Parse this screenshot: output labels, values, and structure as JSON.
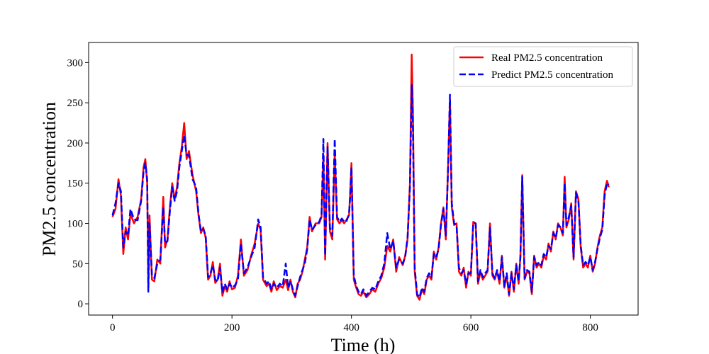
{
  "chart_data": {
    "type": "line",
    "title": "",
    "xlabel": "Time (h)",
    "ylabel": "PM2.5 concentration",
    "xlim": [
      -40,
      880
    ],
    "ylim": [
      -14,
      325
    ],
    "xticks": [
      0,
      200,
      400,
      600,
      800
    ],
    "yticks": [
      0,
      50,
      100,
      150,
      200,
      250,
      300
    ],
    "grid": false,
    "legend_position": "top-right",
    "series": [
      {
        "name": "Real PM2.5 concentration",
        "color": "#ff0000",
        "style": "solid",
        "x": [
          0,
          5,
          10,
          14,
          18,
          22,
          26,
          30,
          36,
          42,
          48,
          52,
          55,
          58,
          60,
          62,
          66,
          70,
          75,
          80,
          85,
          88,
          92,
          96,
          100,
          104,
          108,
          112,
          116,
          120,
          124,
          128,
          134,
          140,
          144,
          148,
          152,
          156,
          160,
          164,
          168,
          172,
          176,
          180,
          184,
          188,
          192,
          196,
          200,
          205,
          210,
          215,
          220,
          226,
          232,
          238,
          244,
          248,
          252,
          258,
          262,
          266,
          270,
          275,
          280,
          285,
          290,
          294,
          298,
          302,
          306,
          310,
          314,
          318,
          322,
          326,
          330,
          334,
          340,
          346,
          350,
          353,
          356,
          360,
          364,
          368,
          372,
          376,
          380,
          384,
          388,
          392,
          396,
          398,
          400,
          404,
          408,
          412,
          416,
          420,
          425,
          430,
          435,
          440,
          445,
          450,
          455,
          460,
          465,
          470,
          475,
          480,
          486,
          490,
          494,
          498,
          501,
          503,
          506,
          510,
          514,
          518,
          522,
          526,
          530,
          534,
          538,
          542,
          546,
          550,
          554,
          558,
          562,
          565,
          568,
          572,
          576,
          580,
          584,
          588,
          592,
          596,
          600,
          604,
          608,
          612,
          616,
          620,
          624,
          628,
          632,
          636,
          640,
          644,
          648,
          652,
          656,
          660,
          664,
          668,
          672,
          676,
          680,
          683,
          686,
          690,
          694,
          698,
          702,
          706,
          710,
          714,
          718,
          722,
          726,
          730,
          734,
          738,
          742,
          746,
          750,
          754,
          757,
          760,
          764,
          768,
          772,
          776,
          780,
          784,
          788,
          792,
          796,
          800,
          804,
          808,
          812,
          816,
          820,
          824,
          828,
          831
        ],
        "values": [
          108,
          118,
          155,
          135,
          62,
          95,
          80,
          112,
          100,
          108,
          130,
          170,
          180,
          150,
          20,
          110,
          30,
          28,
          55,
          50,
          133,
          70,
          80,
          120,
          150,
          130,
          145,
          175,
          195,
          225,
          180,
          190,
          160,
          140,
          110,
          88,
          95,
          82,
          30,
          35,
          52,
          26,
          30,
          50,
          10,
          22,
          15,
          28,
          18,
          20,
          35,
          80,
          35,
          42,
          60,
          75,
          100,
          92,
          30,
          22,
          25,
          15,
          28,
          17,
          22,
          20,
          30,
          17,
          30,
          15,
          8,
          25,
          30,
          40,
          55,
          70,
          108,
          90,
          100,
          100,
          108,
          185,
          55,
          200,
          90,
          80,
          188,
          105,
          100,
          104,
          100,
          105,
          110,
          140,
          175,
          30,
          20,
          12,
          10,
          15,
          8,
          12,
          18,
          15,
          25,
          32,
          45,
          72,
          65,
          80,
          40,
          58,
          48,
          60,
          80,
          150,
          310,
          240,
          40,
          10,
          5,
          18,
          12,
          30,
          35,
          30,
          65,
          55,
          70,
          100,
          120,
          80,
          175,
          255,
          120,
          98,
          100,
          40,
          35,
          45,
          20,
          40,
          35,
          102,
          100,
          25,
          40,
          30,
          35,
          40,
          100,
          35,
          30,
          40,
          25,
          60,
          20,
          35,
          10,
          40,
          15,
          50,
          25,
          60,
          160,
          30,
          40,
          38,
          12,
          60,
          45,
          50,
          45,
          60,
          55,
          75,
          65,
          90,
          80,
          100,
          95,
          85,
          158,
          95,
          105,
          125,
          55,
          140,
          130,
          70,
          45,
          50,
          45,
          60,
          40,
          50,
          70,
          85,
          95,
          140,
          153,
          145
        ]
      },
      {
        "name": "Predict PM2.5 concentration",
        "color": "#0000ff",
        "style": "dashed",
        "x": [
          0,
          5,
          10,
          14,
          18,
          22,
          26,
          30,
          36,
          42,
          48,
          52,
          55,
          58,
          60,
          62,
          66,
          70,
          75,
          80,
          85,
          88,
          92,
          96,
          100,
          104,
          108,
          112,
          116,
          120,
          124,
          128,
          134,
          140,
          144,
          148,
          152,
          156,
          160,
          164,
          168,
          172,
          176,
          180,
          184,
          188,
          192,
          196,
          200,
          205,
          210,
          215,
          220,
          226,
          232,
          238,
          244,
          248,
          252,
          258,
          262,
          266,
          270,
          275,
          280,
          285,
          290,
          294,
          298,
          302,
          306,
          310,
          314,
          318,
          322,
          326,
          330,
          334,
          340,
          346,
          350,
          353,
          356,
          360,
          364,
          368,
          372,
          376,
          380,
          384,
          388,
          392,
          396,
          398,
          400,
          404,
          408,
          412,
          416,
          420,
          425,
          430,
          435,
          440,
          445,
          450,
          455,
          460,
          465,
          470,
          475,
          480,
          486,
          490,
          494,
          498,
          501,
          503,
          506,
          510,
          514,
          518,
          522,
          526,
          530,
          534,
          538,
          542,
          546,
          550,
          554,
          558,
          562,
          565,
          568,
          572,
          576,
          580,
          584,
          588,
          592,
          596,
          600,
          604,
          608,
          612,
          616,
          620,
          624,
          628,
          632,
          636,
          640,
          644,
          648,
          652,
          656,
          660,
          664,
          668,
          672,
          676,
          680,
          683,
          686,
          690,
          694,
          698,
          702,
          706,
          710,
          714,
          718,
          722,
          726,
          730,
          734,
          738,
          742,
          746,
          750,
          754,
          757,
          760,
          764,
          768,
          772,
          776,
          780,
          784,
          788,
          792,
          796,
          800,
          804,
          808,
          812,
          816,
          820,
          824,
          828,
          831
        ],
        "values": [
          110,
          125,
          150,
          140,
          70,
          90,
          85,
          118,
          105,
          104,
          128,
          165,
          175,
          155,
          15,
          100,
          35,
          32,
          50,
          55,
          120,
          75,
          78,
          115,
          145,
          128,
          140,
          170,
          190,
          210,
          185,
          185,
          155,
          145,
          112,
          90,
          93,
          85,
          33,
          38,
          48,
          30,
          28,
          45,
          14,
          25,
          18,
          25,
          20,
          23,
          30,
          75,
          38,
          45,
          58,
          70,
          105,
          95,
          33,
          25,
          28,
          18,
          25,
          20,
          25,
          22,
          50,
          20,
          28,
          18,
          10,
          22,
          33,
          42,
          50,
          68,
          105,
          92,
          98,
          102,
          110,
          205,
          60,
          195,
          95,
          85,
          205,
          108,
          102,
          106,
          102,
          103,
          112,
          135,
          170,
          35,
          22,
          15,
          12,
          18,
          10,
          15,
          20,
          18,
          28,
          35,
          50,
          88,
          68,
          78,
          45,
          55,
          50,
          58,
          82,
          145,
          272,
          220,
          45,
          12,
          8,
          20,
          15,
          32,
          38,
          33,
          62,
          58,
          68,
          98,
          118,
          85,
          170,
          260,
          125,
          100,
          98,
          45,
          38,
          42,
          25,
          38,
          38,
          100,
          100,
          28,
          42,
          33,
          38,
          42,
          95,
          38,
          32,
          42,
          28,
          58,
          22,
          38,
          12,
          38,
          18,
          48,
          28,
          58,
          158,
          32,
          42,
          40,
          15,
          58,
          48,
          52,
          48,
          62,
          58,
          72,
          68,
          88,
          82,
          98,
          95,
          88,
          150,
          98,
          108,
          122,
          58,
          138,
          128,
          72,
          48,
          52,
          48,
          58,
          42,
          52,
          68,
          82,
          92,
          135,
          150,
          148
        ]
      }
    ]
  }
}
